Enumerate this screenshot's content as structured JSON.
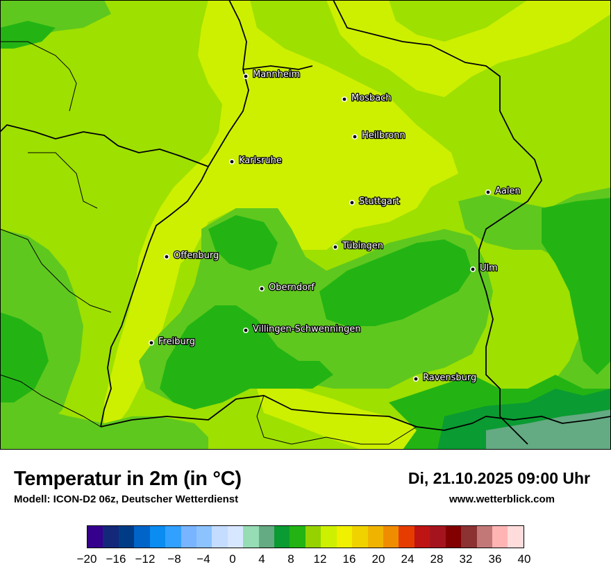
{
  "title": "Temperatur in 2m (in °C)",
  "subtitle": "Modell: ICON-D2 06z, Deutscher Wetterdienst",
  "datetime": "Di, 21.10.2025 09:00 Uhr",
  "website": "www.wetterblick.com",
  "cities": [
    "Mannheim",
    "Mosbach",
    "Heilbronn",
    "Karlsruhe",
    "Aalen",
    "Stuttgart",
    "Tübingen",
    "Offenburg",
    "Ulm",
    "Oberndorf",
    "Villingen-Schwenningen",
    "Freiburg",
    "Ravensburg"
  ],
  "legend": {
    "tick_labels": [
      "−20",
      "−16",
      "−12",
      "−8",
      "−4",
      "0",
      "4",
      "8",
      "12",
      "16",
      "20",
      "24",
      "28",
      "32",
      "36",
      "40"
    ],
    "colors": [
      "#34008c",
      "#14287a",
      "#003c86",
      "#0064c8",
      "#0a8cf0",
      "#32a0ff",
      "#78b4ff",
      "#8cc3ff",
      "#c3dcff",
      "#d7e7ff",
      "#96dcb4",
      "#64aa82",
      "#0a9b32",
      "#23b414",
      "#96d200",
      "#cdf000",
      "#f0f000",
      "#f0d200",
      "#f0b400",
      "#f08c00",
      "#e63c00",
      "#be1414",
      "#a5141e",
      "#820000",
      "#8c3232",
      "#c37878",
      "#ffb4b4",
      "#ffdcdc"
    ]
  },
  "palette": {
    "temp_12_14": "#9ee000",
    "temp_14_16": "#cdf000",
    "temp_10_12": "#5fc81e",
    "temp_8_10": "#23b414",
    "temp_6_8": "#0a9b32",
    "temp_4_6": "#64aa82"
  }
}
